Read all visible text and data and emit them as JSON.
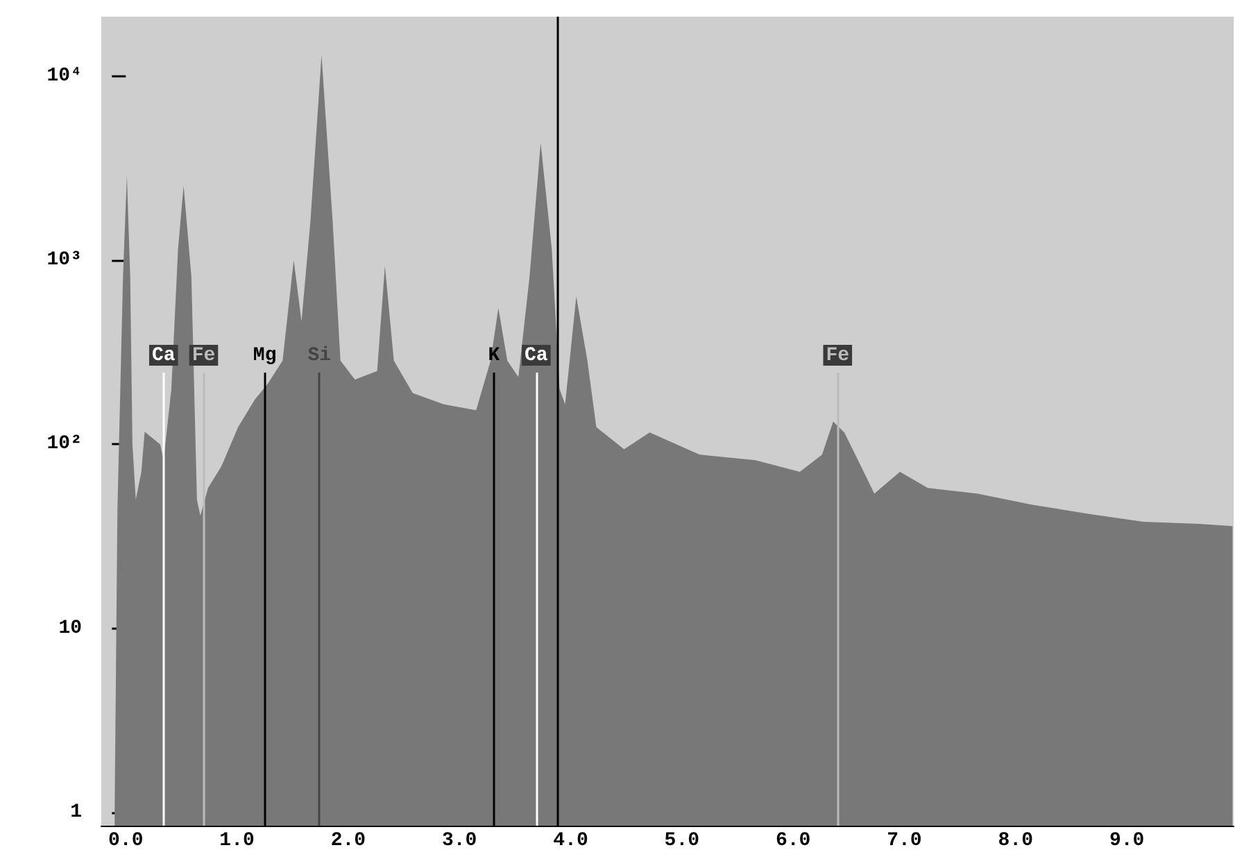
{
  "chart_data": {
    "type": "area",
    "x": [
      -0.1,
      -0.075,
      -0.025,
      0.01,
      0.04,
      0.06,
      0.09,
      0.14,
      0.17,
      0.31,
      0.34,
      0.41,
      0.47,
      0.52,
      0.59,
      0.64,
      0.67,
      0.74,
      0.86,
      1.01,
      1.16,
      1.28,
      1.41,
      1.51,
      1.58,
      1.66,
      1.76,
      1.86,
      1.93,
      2.06,
      2.26,
      2.33,
      2.41,
      2.58,
      2.86,
      3.15,
      3.28,
      3.35,
      3.43,
      3.53,
      3.63,
      3.73,
      3.83,
      3.9,
      3.95,
      4.05,
      4.15,
      4.23,
      4.48,
      4.71,
      5.16,
      5.66,
      6.06,
      6.26,
      6.36,
      6.46,
      6.61,
      6.73,
      6.96,
      7.21,
      7.66,
      8.15,
      8.65,
      9.15,
      9.65,
      9.95
    ],
    "series": [
      {
        "color": "#787878",
        "values": [
          1,
          44,
          810,
          2880,
          810,
          100,
          50,
          71,
          117,
          100,
          82,
          200,
          1150,
          2540,
          810,
          50,
          41,
          58,
          76,
          124,
          175,
          215,
          285,
          1000,
          465,
          1620,
          13000,
          1620,
          285,
          225,
          250,
          930,
          285,
          190,
          165,
          153,
          285,
          550,
          285,
          232,
          810,
          4340,
          1150,
          200,
          165,
          635,
          285,
          124,
          94,
          116,
          88,
          82,
          71,
          88,
          133,
          116,
          76,
          54,
          71,
          58,
          54,
          47,
          42,
          38,
          37,
          36
        ]
      }
    ],
    "log": "y",
    "xlim": [
      -0.22,
      9.96
    ],
    "xticks": [
      {
        "value": 0,
        "label": "0.0"
      },
      {
        "value": 1,
        "label": "1.0"
      },
      {
        "value": 2,
        "label": "2.0"
      },
      {
        "value": 3,
        "label": "3.0"
      },
      {
        "value": 4,
        "label": "4.0"
      },
      {
        "value": 5,
        "label": "5.0"
      },
      {
        "value": 6,
        "label": "6.0"
      },
      {
        "value": 7,
        "label": "7.0"
      },
      {
        "value": 8,
        "label": "8.0"
      },
      {
        "value": 9,
        "label": "9.0"
      },
      {
        "value": 9.9,
        "label": null
      }
    ],
    "ylim": [
      0.85,
      21000
    ],
    "yticks": [
      1,
      10,
      {
        "value": 100,
        "label": "10²"
      },
      {
        "value": 1000,
        "label": "10³"
      },
      {
        "value": 10000,
        "label": "10⁴"
      }
    ],
    "ref_lines": [
      {
        "axis": "x",
        "value": 0.34,
        "label": "Ca",
        "color": "#ffffff"
      },
      {
        "axis": "x",
        "value": 0.7,
        "label": "Fe",
        "color": "#bbbbbb"
      },
      {
        "axis": "x",
        "value": 1.25,
        "label": "Mg",
        "color": "#000000"
      },
      {
        "axis": "x",
        "value": 1.74,
        "label": "Si",
        "color": "#444444"
      },
      {
        "axis": "x",
        "value": 3.31,
        "label": "K",
        "color": "#000000"
      },
      {
        "axis": "x",
        "value": 3.69,
        "label": "Ca",
        "color": "#ffffff"
      },
      {
        "axis": "x",
        "value": 6.4,
        "label": "Fe",
        "color": "#bbbbbb"
      },
      {
        "axis": "x",
        "value": 3.88,
        "color": "#000000"
      }
    ]
  }
}
